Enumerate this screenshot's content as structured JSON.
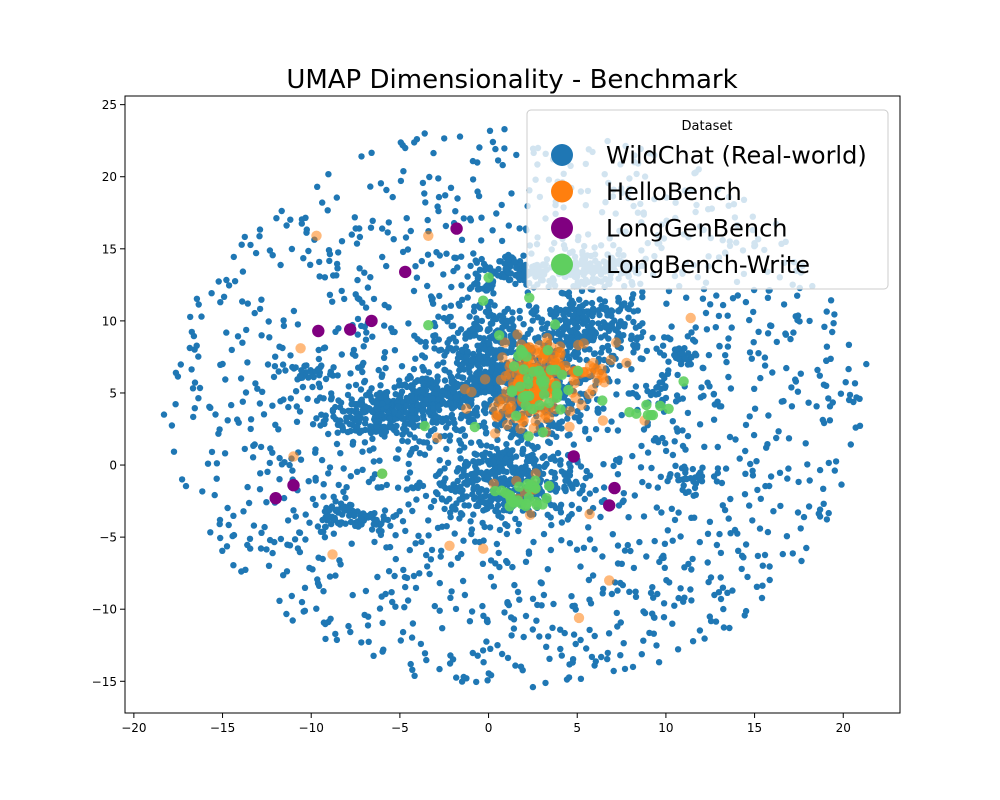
{
  "chart_data": {
    "type": "scatter",
    "title": "UMAP Dimensionality - Benchmark",
    "xlabel": "",
    "ylabel": "",
    "xlim": [
      -20.5,
      23.2
    ],
    "ylim": [
      -17.2,
      25.6
    ],
    "x_ticks": [
      -20,
      -15,
      -10,
      -5,
      0,
      5,
      10,
      15,
      20
    ],
    "y_ticks": [
      -15,
      -10,
      -5,
      0,
      5,
      10,
      15,
      20,
      25
    ],
    "x_tick_labels": [
      "−20",
      "−15",
      "−10",
      "−5",
      "0",
      "5",
      "10",
      "15",
      "20"
    ],
    "y_tick_labels": [
      "−15",
      "−10",
      "−5",
      "0",
      "5",
      "10",
      "15",
      "20",
      "25"
    ],
    "grid": false,
    "legend": {
      "title": "Dataset",
      "placement": "top-right"
    },
    "series": [
      {
        "name": "WildChat (Real-world)",
        "color": "#1f77b4",
        "clusters": [
          {
            "center": [
              -6.0,
              3.5
            ],
            "spread": [
              1.6,
              0.9
            ],
            "count": 260
          },
          {
            "center": [
              -3.2,
              4.5
            ],
            "spread": [
              1.2,
              0.7
            ],
            "count": 160
          },
          {
            "center": [
              1.0,
              5.8
            ],
            "spread": [
              2.4,
              2.0
            ],
            "count": 650
          },
          {
            "center": [
              5.5,
              9.3
            ],
            "spread": [
              1.6,
              1.4
            ],
            "count": 260
          },
          {
            "center": [
              0.8,
              -1.2
            ],
            "spread": [
              2.0,
              1.3
            ],
            "count": 380
          },
          {
            "center": [
              1.8,
              13.5
            ],
            "spread": [
              1.4,
              0.6
            ],
            "count": 120
          },
          {
            "center": [
              6.0,
              13.7
            ],
            "spread": [
              1.2,
              0.6
            ],
            "count": 110
          },
          {
            "center": [
              -8.7,
              -3.2
            ],
            "spread": [
              0.5,
              0.6
            ],
            "count": 40
          },
          {
            "center": [
              -6.8,
              -3.9
            ],
            "spread": [
              0.6,
              0.3
            ],
            "count": 30
          },
          {
            "center": [
              10.9,
              7.6
            ],
            "spread": [
              0.4,
              0.4
            ],
            "count": 28
          },
          {
            "center": [
              9.6,
              4.8
            ],
            "spread": [
              0.6,
              0.6
            ],
            "count": 30
          },
          {
            "center": [
              -10.0,
              6.4
            ],
            "spread": [
              0.6,
              0.3
            ],
            "count": 25
          },
          {
            "center": [
              11.0,
              -0.8
            ],
            "spread": [
              0.5,
              0.5
            ],
            "count": 22
          },
          {
            "center": [
              0.0,
              9.5
            ],
            "spread": [
              1.0,
              1.5
            ],
            "count": 80
          }
        ],
        "background": {
          "center": [
            1.5,
            4.0
          ],
          "radius": [
            19.5,
            19.5
          ],
          "count": 1500
        },
        "isolated_points": [
          [
            -18.3,
            3.5
          ],
          [
            20.7,
            2.6
          ],
          [
            21.3,
            7.0
          ],
          [
            0.9,
            23.3
          ],
          [
            -3.6,
            23.0
          ],
          [
            2.5,
            -15.4
          ],
          [
            -4.3,
            -14.2
          ],
          [
            -1.4,
            -14.7
          ],
          [
            18.1,
            10.0
          ],
          [
            15.8,
            12.1
          ]
        ]
      },
      {
        "name": "HelloBench",
        "color": "#ff7f0e",
        "clusters": [
          {
            "center": [
              2.3,
              5.5
            ],
            "spread": [
              1.3,
              1.4
            ],
            "count": 130
          },
          {
            "center": [
              3.3,
              6.8
            ],
            "spread": [
              0.9,
              0.8
            ],
            "count": 40
          },
          {
            "center": [
              5.9,
              6.4
            ],
            "spread": [
              0.8,
              0.5
            ],
            "count": 20
          },
          {
            "center": [
              2.0,
              -1.8
            ],
            "spread": [
              0.7,
              0.7
            ],
            "count": 10
          }
        ],
        "isolated_points": [
          [
            -9.7,
            15.9
          ],
          [
            -3.4,
            15.9
          ],
          [
            -10.6,
            8.1
          ],
          [
            -11.0,
            0.6
          ],
          [
            -6.0,
            -0.6
          ],
          [
            -8.8,
            -6.2
          ],
          [
            -2.2,
            -5.6
          ],
          [
            -0.3,
            -5.8
          ],
          [
            5.1,
            -10.6
          ],
          [
            6.8,
            -8.0
          ],
          [
            11.4,
            10.2
          ],
          [
            8.8,
            3.1
          ],
          [
            -2.9,
            1.9
          ],
          [
            5.7,
            -3.4
          ],
          [
            7.2,
            8.5
          ]
        ]
      },
      {
        "name": "LongGenBench",
        "color": "#800080",
        "points": [
          [
            -1.8,
            16.4
          ],
          [
            -4.7,
            13.4
          ],
          [
            -6.6,
            10.0
          ],
          [
            -7.8,
            9.4
          ],
          [
            -9.6,
            9.3
          ],
          [
            -12.0,
            -2.3
          ],
          [
            -11.0,
            -1.4
          ],
          [
            4.8,
            0.6
          ],
          [
            7.1,
            -1.6
          ],
          [
            6.8,
            -2.8
          ]
        ]
      },
      {
        "name": "LongBench-Write",
        "color": "#5fcf5f",
        "clusters": [
          {
            "center": [
              2.6,
              5.6
            ],
            "spread": [
              1.4,
              1.5
            ],
            "count": 42
          },
          {
            "center": [
              2.0,
              -2.3
            ],
            "spread": [
              0.8,
              0.6
            ],
            "count": 26
          },
          {
            "center": [
              9.1,
              3.4
            ],
            "spread": [
              0.5,
              0.6
            ],
            "count": 8
          }
        ],
        "isolated_points": [
          [
            -3.4,
            9.7
          ],
          [
            -3.6,
            2.7
          ],
          [
            -6.0,
            -0.6
          ],
          [
            -0.3,
            11.4
          ],
          [
            2.3,
            11.6
          ],
          [
            0.0,
            13.0
          ],
          [
            11.0,
            5.8
          ],
          [
            0.6,
            9.0
          ]
        ]
      }
    ]
  }
}
